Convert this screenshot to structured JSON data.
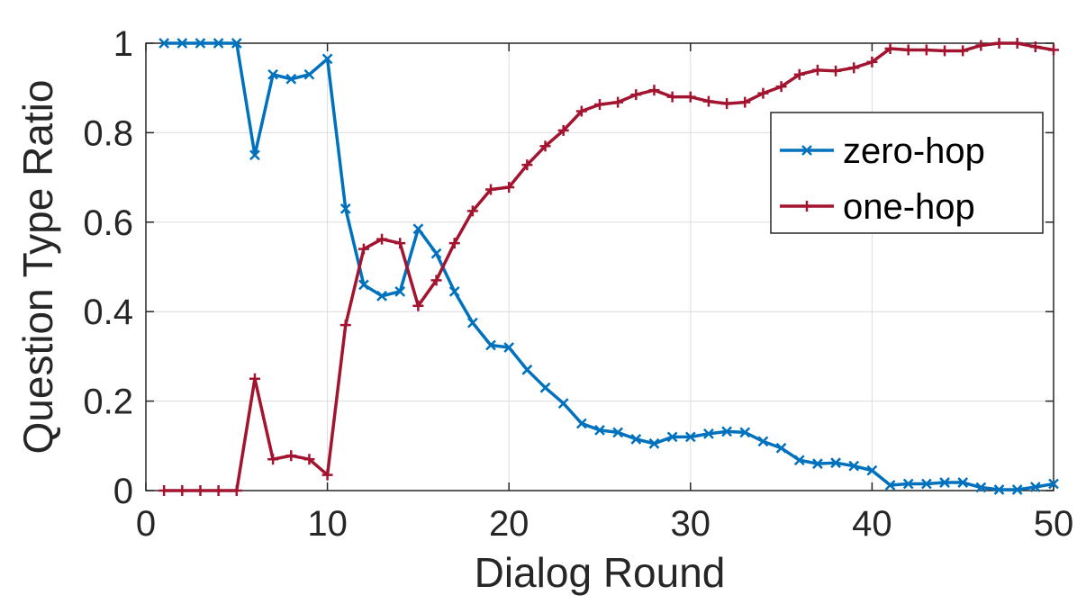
{
  "chart_data": {
    "type": "line",
    "title": "",
    "xlabel": "Dialog Round",
    "ylabel": "Question Type Ratio",
    "xlim": [
      0,
      50
    ],
    "ylim": [
      0,
      1
    ],
    "xticks": [
      0,
      10,
      20,
      30,
      40,
      50
    ],
    "yticks": [
      0,
      0.2,
      0.4,
      0.6,
      0.8,
      1
    ],
    "ytick_labels": [
      "0",
      "0.2",
      "0.4",
      "0.6",
      "0.8",
      "1"
    ],
    "grid": true,
    "legend_position": "right",
    "x": [
      1,
      2,
      3,
      4,
      5,
      6,
      7,
      8,
      9,
      10,
      11,
      12,
      13,
      14,
      15,
      16,
      17,
      18,
      19,
      20,
      21,
      22,
      23,
      24,
      25,
      26,
      27,
      28,
      29,
      30,
      31,
      32,
      33,
      34,
      35,
      36,
      37,
      38,
      39,
      40,
      41,
      42,
      43,
      44,
      45,
      46,
      47,
      48,
      49,
      50
    ],
    "series": [
      {
        "name": "zero-hop",
        "color": "#0072BD",
        "marker": "x",
        "values": [
          1,
          1,
          1,
          1,
          1,
          0.75,
          0.93,
          0.92,
          0.93,
          0.965,
          0.63,
          0.46,
          0.435,
          0.445,
          0.585,
          0.53,
          0.445,
          0.375,
          0.325,
          0.32,
          0.27,
          0.23,
          0.195,
          0.15,
          0.135,
          0.13,
          0.115,
          0.105,
          0.12,
          0.12,
          0.127,
          0.132,
          0.13,
          0.11,
          0.095,
          0.068,
          0.06,
          0.062,
          0.055,
          0.045,
          0.012,
          0.015,
          0.015,
          0.018,
          0.018,
          0.007,
          0.002,
          0.002,
          0.008,
          0.015
        ]
      },
      {
        "name": "one-hop",
        "color": "#A2142F",
        "marker": "+",
        "values": [
          0,
          0,
          0,
          0,
          0,
          0.25,
          0.07,
          0.078,
          0.07,
          0.035,
          0.37,
          0.54,
          0.562,
          0.553,
          0.413,
          0.47,
          0.553,
          0.625,
          0.673,
          0.678,
          0.728,
          0.77,
          0.805,
          0.848,
          0.863,
          0.868,
          0.885,
          0.895,
          0.88,
          0.88,
          0.87,
          0.865,
          0.868,
          0.888,
          0.903,
          0.93,
          0.94,
          0.938,
          0.945,
          0.958,
          0.988,
          0.985,
          0.985,
          0.983,
          0.983,
          0.995,
          1,
          1,
          0.992,
          0.985
        ]
      }
    ]
  }
}
